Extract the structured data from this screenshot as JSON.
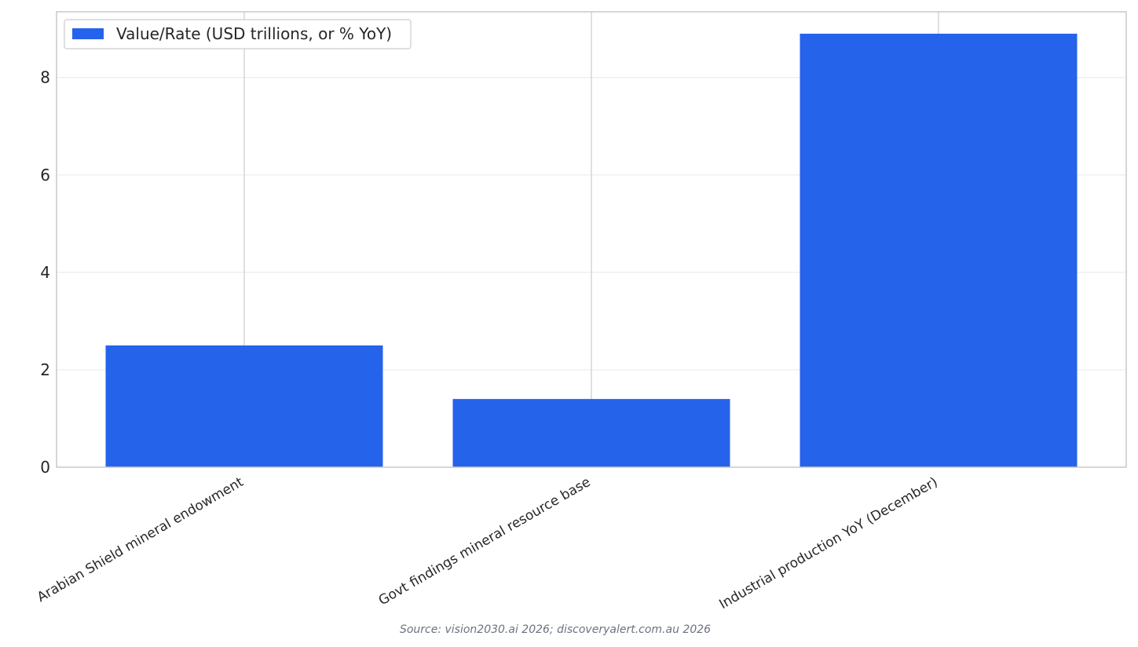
{
  "chart_data": {
    "type": "bar",
    "categories": [
      "Arabian Shield mineral endowment",
      "Govt findings mineral resource base",
      "Industrial production YoY (December)"
    ],
    "series": [
      {
        "name": "Value/Rate (USD trillions, or % YoY)",
        "values": [
          2.5,
          1.4,
          8.9
        ],
        "color": "#2563eb"
      }
    ],
    "ylim": [
      0,
      9.35
    ],
    "yticks": [
      0,
      2,
      4,
      6,
      8
    ],
    "grid": "y-major light, x-category lines",
    "legend_position": "upper-left"
  },
  "footer": {
    "source": "Source: vision2030.ai 2026; discoveryalert.com.au 2026"
  }
}
